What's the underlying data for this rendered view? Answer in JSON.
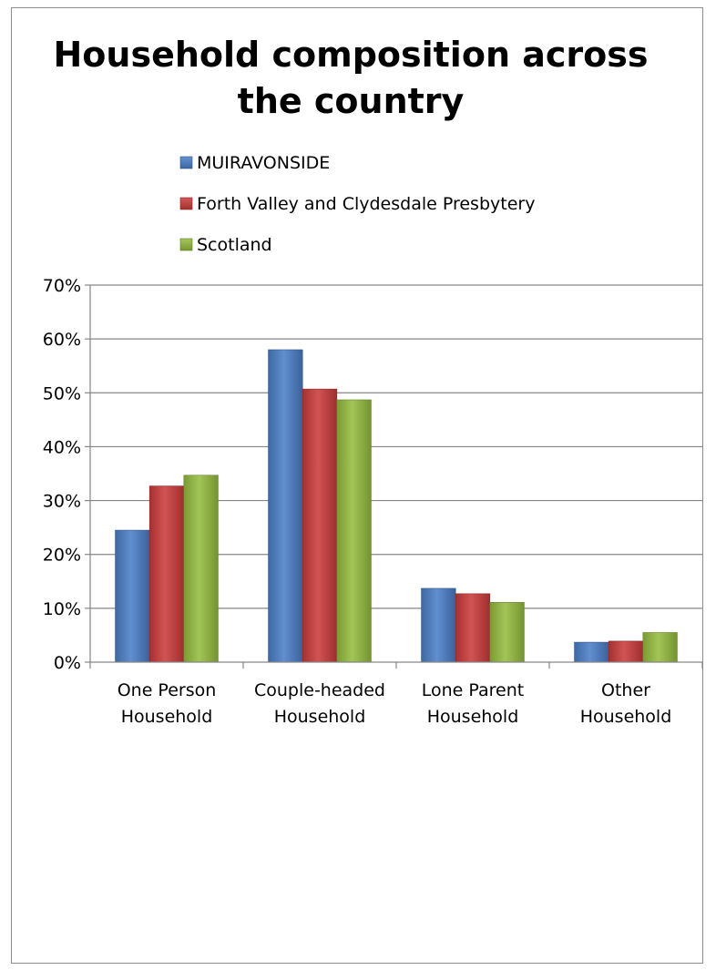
{
  "chart_data": {
    "type": "bar",
    "title": [
      "Household composition across",
      "the country"
    ],
    "categories": [
      [
        "One Person",
        "Household"
      ],
      [
        "Couple-headed",
        "Household"
      ],
      [
        "Lone Parent",
        "Household"
      ],
      [
        "Other",
        "Household"
      ]
    ],
    "series": [
      {
        "name": "MUIRAVONSIDE",
        "values": [
          24.5,
          58.0,
          13.7,
          3.7
        ],
        "color": "#4a7fc8"
      },
      {
        "name": "Forth Valley and Clydesdale Presbytery",
        "values": [
          32.7,
          50.7,
          12.7,
          3.9
        ],
        "color": "#cc3b3b"
      },
      {
        "name": "Scotland",
        "values": [
          34.7,
          48.7,
          11.1,
          5.5
        ],
        "color": "#95bd3f"
      }
    ],
    "ylim": [
      0,
      70
    ],
    "yticks": [
      "0%",
      "10%",
      "20%",
      "30%",
      "40%",
      "50%",
      "60%",
      "70%"
    ],
    "ytick_values": [
      0,
      10,
      20,
      30,
      40,
      50,
      60,
      70
    ],
    "grid": true,
    "legend_position": "top"
  }
}
